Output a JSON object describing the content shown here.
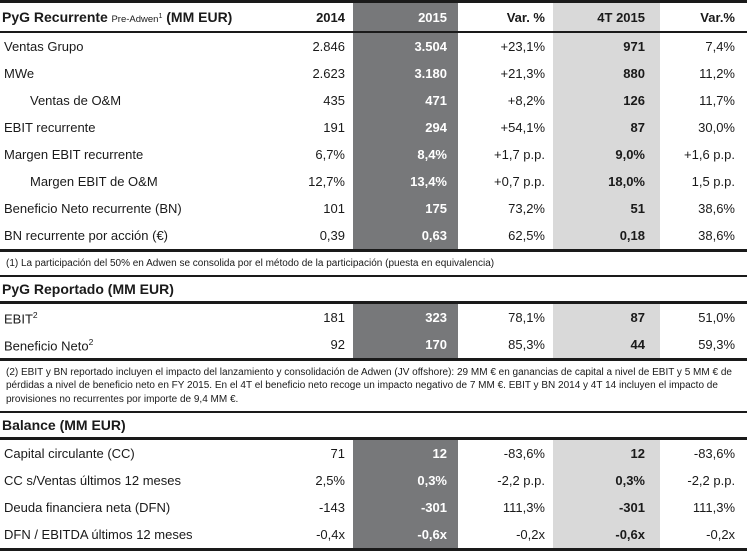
{
  "colors": {
    "col_2015_bg": "#77787a",
    "col_4t2015_bg": "#d9d9d9",
    "text": "#1a1a1a",
    "border": "#1a1a1a"
  },
  "table": {
    "columns": [
      "2014",
      "2015",
      "Var. %",
      "4T 2015",
      "Var.%"
    ],
    "sections": [
      {
        "id": "pyg-recurrente",
        "title": "PyG Recurrente",
        "title_note": "Pre-Adwen",
        "title_note_sup": "1",
        "title_suffix": " (MM EUR)",
        "rows": [
          {
            "label": "Ventas Grupo",
            "sup": "",
            "indent": false,
            "values": [
              "2.846",
              "3.504",
              "+23,1%",
              "971",
              "7,4%"
            ]
          },
          {
            "label": "MWe",
            "sup": "",
            "indent": false,
            "values": [
              "2.623",
              "3.180",
              "+21,3%",
              "880",
              "11,2%"
            ]
          },
          {
            "label": "Ventas de O&M",
            "sup": "",
            "indent": true,
            "values": [
              "435",
              "471",
              "+8,2%",
              "126",
              "11,7%"
            ]
          },
          {
            "label": "EBIT recurrente",
            "sup": "",
            "indent": false,
            "values": [
              "191",
              "294",
              "+54,1%",
              "87",
              "30,0%"
            ]
          },
          {
            "label": "Margen EBIT recurrente",
            "sup": "",
            "indent": false,
            "values": [
              "6,7%",
              "8,4%",
              "+1,7 p.p.",
              "9,0%",
              "+1,6 p.p."
            ]
          },
          {
            "label": "Margen EBIT de O&M",
            "sup": "",
            "indent": true,
            "values": [
              "12,7%",
              "13,4%",
              "+0,7 p.p.",
              "18,0%",
              "1,5 p.p."
            ]
          },
          {
            "label": "Beneficio Neto recurrente (BN)",
            "sup": "",
            "indent": false,
            "values": [
              "101",
              "175",
              "73,2%",
              "51",
              "38,6%"
            ]
          },
          {
            "label": "BN recurrente por acción (€)",
            "sup": "",
            "indent": false,
            "values": [
              "0,39",
              "0,63",
              "62,5%",
              "0,18",
              "38,6%"
            ]
          }
        ],
        "footnote": "(1) La participación del 50% en Adwen se consolida por el método de la participación (puesta en equivalencia)"
      },
      {
        "id": "pyg-reportado",
        "title": "PyG Reportado (MM EUR)",
        "rows": [
          {
            "label": "EBIT",
            "sup": "2",
            "indent": false,
            "values": [
              "181",
              "323",
              "78,1%",
              "87",
              "51,0%"
            ]
          },
          {
            "label": "Beneficio Neto",
            "sup": "2",
            "indent": false,
            "values": [
              "92",
              "170",
              "85,3%",
              "44",
              "59,3%"
            ]
          }
        ],
        "footnote": "(2) EBIT y BN reportado incluyen el impacto del lanzamiento y consolidación de Adwen (JV offshore): 29 MM € en ganancias de capital a nivel de EBIT y 5 MM € de pérdidas a nivel de beneficio neto en FY 2015. En el 4T el beneficio neto recoge un impacto negativo de 7 MM €. EBIT y BN 2014 y 4T 14 incluyen el impacto de provisiones no recurrentes por importe de 9,4 MM €."
      },
      {
        "id": "balance",
        "title": "Balance (MM EUR)",
        "rows": [
          {
            "label": "Capital circulante (CC)",
            "sup": "",
            "indent": false,
            "values": [
              "71",
              "12",
              "-83,6%",
              "12",
              "-83,6%"
            ]
          },
          {
            "label": "CC s/Ventas últimos 12 meses",
            "sup": "",
            "indent": false,
            "values": [
              "2,5%",
              "0,3%",
              "-2,2 p.p.",
              "0,3%",
              "-2,2 p.p."
            ]
          },
          {
            "label": "Deuda financiera neta (DFN)",
            "sup": "",
            "indent": false,
            "values": [
              "-143",
              "-301",
              "111,3%",
              "-301",
              "111,3%"
            ]
          },
          {
            "label": "DFN / EBITDA últimos 12 meses",
            "sup": "",
            "indent": false,
            "values": [
              "-0,4x",
              "-0,6x",
              "-0,2x",
              "-0,6x",
              "-0,2x"
            ]
          }
        ],
        "footnote": ""
      }
    ]
  }
}
